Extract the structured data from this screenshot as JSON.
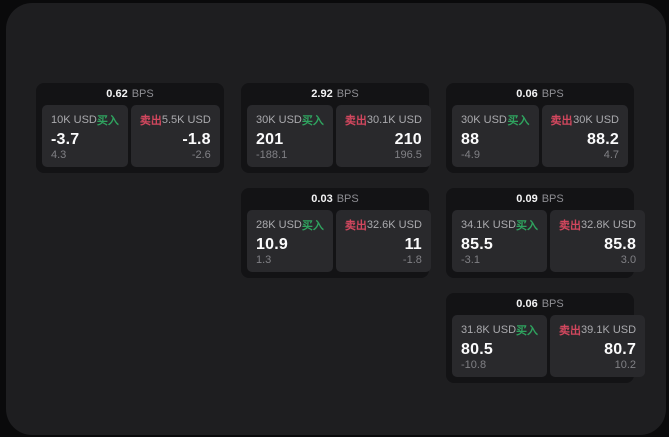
{
  "labels": {
    "bps_unit": "BPS",
    "buy": "买入",
    "sell": "卖出"
  },
  "colors": {
    "buy_green": "#2fa35f",
    "sell_red": "#d2475e",
    "window_bg": "#1e1e20",
    "card_bg": "#131315",
    "panel_bg": "#29292c",
    "outer_bg": "#0a0a0b"
  },
  "cards": [
    {
      "bps": "0.62",
      "buy": {
        "amount": "10K USD",
        "price": "-3.7",
        "sub": "4.3"
      },
      "sell": {
        "amount": "5.5K USD",
        "price": "-1.8",
        "sub": "-2.6"
      }
    },
    {
      "bps": "2.92",
      "buy": {
        "amount": "30K USD",
        "price": "201",
        "sub": "-188.1"
      },
      "sell": {
        "amount": "30.1K USD",
        "price": "210",
        "sub": "196.5"
      }
    },
    {
      "bps": "0.06",
      "buy": {
        "amount": "30K USD",
        "price": "88",
        "sub": "-4.9"
      },
      "sell": {
        "amount": "30K USD",
        "price": "88.2",
        "sub": "4.7"
      }
    },
    {
      "bps": "0.03",
      "buy": {
        "amount": "28K USD",
        "price": "10.9",
        "sub": "1.3"
      },
      "sell": {
        "amount": "32.6K USD",
        "price": "11",
        "sub": "-1.8"
      }
    },
    {
      "bps": "0.09",
      "buy": {
        "amount": "34.1K USD",
        "price": "85.5",
        "sub": "-3.1"
      },
      "sell": {
        "amount": "32.8K USD",
        "price": "85.8",
        "sub": "3.0"
      }
    },
    {
      "bps": "0.06",
      "buy": {
        "amount": "31.8K USD",
        "price": "80.5",
        "sub": "-10.8"
      },
      "sell": {
        "amount": "39.1K USD",
        "price": "80.7",
        "sub": "10.2"
      }
    }
  ]
}
